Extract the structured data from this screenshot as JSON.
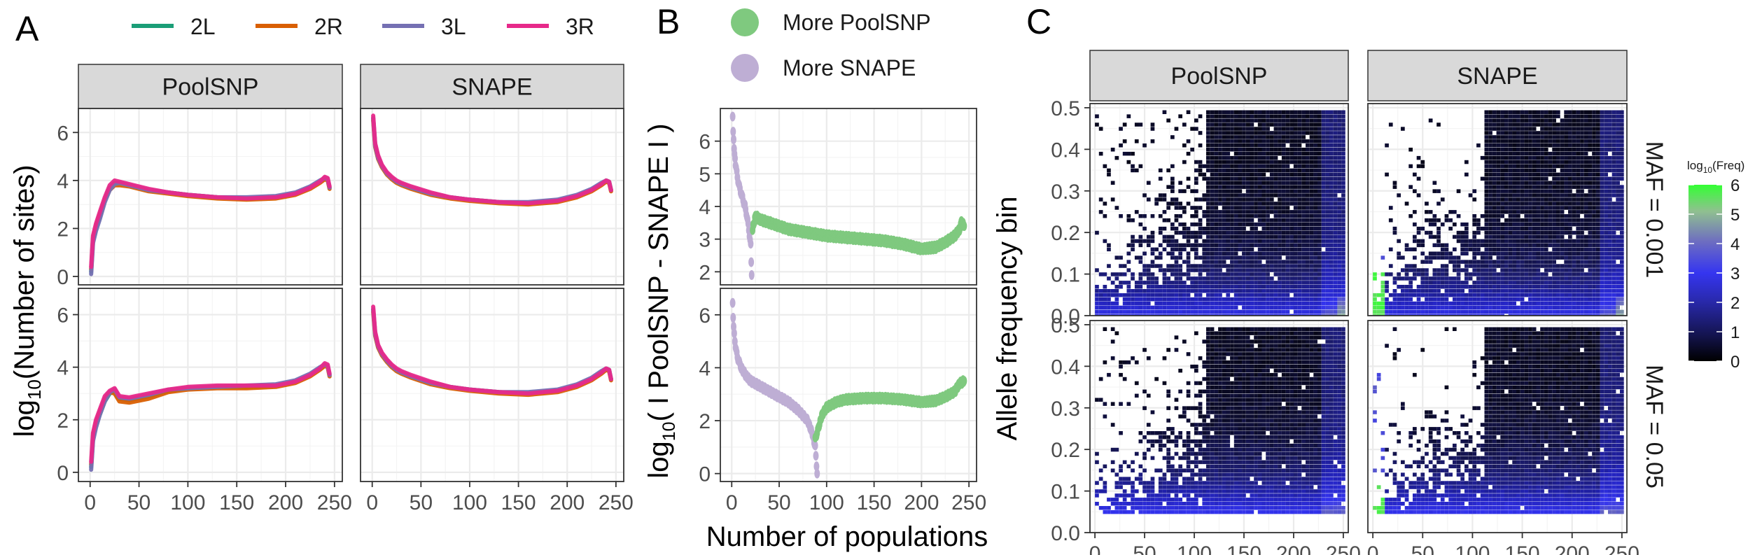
{
  "panels": {
    "a": "A",
    "b": "B",
    "c": "C"
  },
  "legend_a": [
    {
      "name": "2L",
      "color": "#1b9e77"
    },
    {
      "name": "2R",
      "color": "#d95f02"
    },
    {
      "name": "3L",
      "color": "#7570b3"
    },
    {
      "name": "3R",
      "color": "#e7298a"
    }
  ],
  "legend_b": [
    {
      "name": "More PoolSNP",
      "color": "#7fc97f"
    },
    {
      "name": "More SNAPE",
      "color": "#beaed4"
    }
  ],
  "strips": {
    "poolsnp": "PoolSNP",
    "snape": "SNAPE"
  },
  "row_strips": {
    "top": "MAF = 0.001",
    "bottom": "MAF = 0.05"
  },
  "axes": {
    "a_ylabel_main": "log",
    "a_ylabel_sub": "10",
    "a_ylabel_rest": "(Number of sites)",
    "b_ylabel_main": "log",
    "b_ylabel_sub": "10",
    "b_ylabel_rest": "( I PoolSNP - SNAPE I )",
    "c_ylabel": "Allele frequency bin",
    "shared_xlabel": "Number of populations"
  },
  "colorbar": {
    "title_main": "log",
    "title_sub": "10",
    "title_rest": "(Freq)",
    "ticks": [
      "6",
      "5",
      "4",
      "3",
      "2",
      "1",
      "0"
    ],
    "colors": [
      "#000000",
      "#1a1a66",
      "#2222bb",
      "#3333ee",
      "#6b6bbd",
      "#8fbf8f",
      "#33ff33"
    ]
  },
  "chart_data": [
    {
      "id": "A",
      "type": "line",
      "xlabel": "Number of populations",
      "ylabel": "log10(Number of sites)",
      "xlim": [
        0,
        250
      ],
      "ylim": [
        0,
        7
      ],
      "x_ticks": [
        0,
        50,
        100,
        150,
        200,
        250
      ],
      "y_ticks": [
        0,
        2,
        4,
        6
      ],
      "facets": [
        {
          "col": "PoolSNP",
          "row": 1,
          "x": [
            1,
            3,
            6,
            10,
            15,
            20,
            25,
            30,
            40,
            60,
            80,
            100,
            130,
            160,
            190,
            210,
            225,
            235,
            240,
            243,
            245
          ],
          "series": [
            {
              "name": "2L",
              "values": [
                0.2,
                1.5,
                2.0,
                2.5,
                3.2,
                3.7,
                3.9,
                3.9,
                3.8,
                3.6,
                3.5,
                3.4,
                3.3,
                3.25,
                3.3,
                3.45,
                3.7,
                3.95,
                4.1,
                4.05,
                3.7
              ]
            },
            {
              "name": "2R",
              "values": [
                0.3,
                1.6,
                2.1,
                2.6,
                3.2,
                3.6,
                3.8,
                3.8,
                3.75,
                3.55,
                3.45,
                3.35,
                3.25,
                3.2,
                3.25,
                3.4,
                3.65,
                3.9,
                4.05,
                4.0,
                3.65
              ]
            },
            {
              "name": "3L",
              "values": [
                0.1,
                1.4,
                1.9,
                2.4,
                3.1,
                3.6,
                3.85,
                3.9,
                3.8,
                3.6,
                3.5,
                3.4,
                3.3,
                3.3,
                3.35,
                3.5,
                3.75,
                4.0,
                4.1,
                4.05,
                3.7
              ]
            },
            {
              "name": "3R",
              "values": [
                0.4,
                1.7,
                2.2,
                2.7,
                3.3,
                3.8,
                4.0,
                3.95,
                3.85,
                3.65,
                3.5,
                3.4,
                3.3,
                3.25,
                3.3,
                3.45,
                3.7,
                3.95,
                4.15,
                4.1,
                3.75
              ]
            }
          ]
        },
        {
          "col": "SNAPE",
          "row": 1,
          "x": [
            1,
            3,
            6,
            10,
            15,
            20,
            25,
            30,
            40,
            60,
            80,
            100,
            130,
            160,
            190,
            210,
            225,
            235,
            240,
            243,
            245
          ],
          "series": [
            {
              "name": "2L",
              "values": [
                6.6,
                5.5,
                5.0,
                4.6,
                4.3,
                4.1,
                3.95,
                3.85,
                3.7,
                3.45,
                3.3,
                3.2,
                3.1,
                3.05,
                3.15,
                3.35,
                3.6,
                3.85,
                4.0,
                3.95,
                3.6
              ]
            },
            {
              "name": "2R",
              "values": [
                6.5,
                5.4,
                4.9,
                4.55,
                4.25,
                4.05,
                3.9,
                3.8,
                3.65,
                3.4,
                3.25,
                3.15,
                3.05,
                3.0,
                3.1,
                3.3,
                3.55,
                3.8,
                3.95,
                3.9,
                3.55
              ]
            },
            {
              "name": "3L",
              "values": [
                6.6,
                5.45,
                4.95,
                4.6,
                4.3,
                4.1,
                3.95,
                3.85,
                3.7,
                3.45,
                3.3,
                3.2,
                3.1,
                3.1,
                3.2,
                3.4,
                3.65,
                3.9,
                4.0,
                3.95,
                3.6
              ]
            },
            {
              "name": "3R",
              "values": [
                6.7,
                5.55,
                5.05,
                4.65,
                4.35,
                4.15,
                4.0,
                3.9,
                3.75,
                3.5,
                3.3,
                3.2,
                3.1,
                3.05,
                3.15,
                3.35,
                3.6,
                3.85,
                4.0,
                3.95,
                3.6
              ]
            }
          ]
        },
        {
          "col": "PoolSNP",
          "row": 2,
          "x": [
            1,
            3,
            6,
            10,
            15,
            20,
            25,
            30,
            40,
            60,
            80,
            100,
            130,
            160,
            190,
            210,
            225,
            235,
            240,
            243,
            245
          ],
          "series": [
            {
              "name": "2L",
              "values": [
                0.2,
                1.3,
                1.8,
                2.2,
                2.7,
                3.0,
                3.1,
                2.8,
                2.75,
                2.9,
                3.1,
                3.2,
                3.25,
                3.25,
                3.3,
                3.45,
                3.7,
                3.95,
                4.1,
                4.05,
                3.7
              ]
            },
            {
              "name": "2R",
              "values": [
                0.3,
                1.4,
                1.9,
                2.3,
                2.8,
                3.05,
                3.0,
                2.7,
                2.65,
                2.8,
                3.05,
                3.15,
                3.2,
                3.2,
                3.25,
                3.4,
                3.65,
                3.9,
                4.05,
                4.0,
                3.65
              ]
            },
            {
              "name": "3L",
              "values": [
                0.1,
                1.2,
                1.7,
                2.2,
                2.7,
                3.05,
                3.15,
                2.85,
                2.8,
                2.95,
                3.15,
                3.2,
                3.25,
                3.3,
                3.35,
                3.5,
                3.75,
                4.0,
                4.1,
                4.05,
                3.7
              ]
            },
            {
              "name": "3R",
              "values": [
                0.4,
                1.5,
                2.0,
                2.4,
                2.9,
                3.1,
                3.2,
                2.9,
                2.85,
                3.0,
                3.15,
                3.25,
                3.3,
                3.3,
                3.3,
                3.45,
                3.7,
                3.95,
                4.15,
                4.1,
                3.75
              ]
            }
          ]
        },
        {
          "col": "SNAPE",
          "row": 2,
          "x": [
            1,
            3,
            6,
            10,
            15,
            20,
            25,
            30,
            40,
            60,
            80,
            100,
            130,
            160,
            190,
            210,
            225,
            235,
            240,
            243,
            245
          ],
          "series": [
            {
              "name": "2L",
              "values": [
                6.2,
                5.3,
                4.8,
                4.5,
                4.25,
                4.05,
                3.9,
                3.8,
                3.65,
                3.4,
                3.25,
                3.15,
                3.05,
                3.0,
                3.1,
                3.3,
                3.55,
                3.8,
                3.95,
                3.9,
                3.55
              ]
            },
            {
              "name": "2R",
              "values": [
                6.1,
                5.2,
                4.75,
                4.45,
                4.2,
                4.0,
                3.85,
                3.75,
                3.6,
                3.35,
                3.2,
                3.1,
                3.0,
                2.95,
                3.05,
                3.25,
                3.5,
                3.75,
                3.9,
                3.85,
                3.5
              ]
            },
            {
              "name": "3L",
              "values": [
                6.2,
                5.25,
                4.8,
                4.5,
                4.25,
                4.05,
                3.9,
                3.8,
                3.65,
                3.4,
                3.25,
                3.15,
                3.05,
                3.05,
                3.15,
                3.35,
                3.6,
                3.85,
                3.95,
                3.9,
                3.55
              ]
            },
            {
              "name": "3R",
              "values": [
                6.3,
                5.35,
                4.85,
                4.55,
                4.3,
                4.1,
                3.95,
                3.85,
                3.7,
                3.45,
                3.25,
                3.15,
                3.05,
                3.0,
                3.1,
                3.3,
                3.55,
                3.8,
                3.95,
                3.9,
                3.55
              ]
            }
          ]
        }
      ]
    },
    {
      "id": "B",
      "type": "scatter",
      "xlabel": "Number of populations",
      "ylabel": "log10( I PoolSNP - SNAPE I )",
      "xlim": [
        0,
        250
      ],
      "x_ticks": [
        0,
        50,
        100,
        150,
        200,
        250
      ],
      "facets": [
        {
          "row": 1,
          "ylim": [
            1.6,
            7
          ],
          "y_ticks": [
            2,
            3,
            4,
            5,
            6
          ],
          "series": [
            {
              "name": "More SNAPE",
              "x": [
                1,
                2,
                3,
                4,
                6,
                8,
                10,
                12,
                14,
                16,
                18,
                20,
                21
              ],
              "values": [
                6.7,
                6.0,
                5.6,
                5.3,
                4.9,
                4.6,
                4.4,
                4.2,
                4.0,
                3.7,
                3.3,
                2.8,
                1.9
              ]
            },
            {
              "name": "More PoolSNP",
              "x": [
                22,
                25,
                30,
                40,
                50,
                60,
                80,
                100,
                120,
                140,
                160,
                180,
                200,
                215,
                225,
                235,
                240,
                242,
                245
              ],
              "values": [
                3.3,
                3.7,
                3.6,
                3.5,
                3.4,
                3.3,
                3.2,
                3.1,
                3.05,
                3.0,
                2.95,
                2.85,
                2.7,
                2.75,
                2.9,
                3.1,
                3.3,
                3.5,
                3.4
              ]
            }
          ]
        },
        {
          "row": 2,
          "ylim": [
            -0.3,
            7
          ],
          "y_ticks": [
            0,
            2,
            4,
            6
          ],
          "series": [
            {
              "name": "More SNAPE",
              "x": [
                1,
                2,
                4,
                6,
                10,
                15,
                20,
                30,
                40,
                50,
                60,
                70,
                80,
                85,
                88,
                90
              ],
              "values": [
                6.4,
                5.5,
                4.8,
                4.4,
                4.0,
                3.7,
                3.5,
                3.3,
                3.1,
                2.9,
                2.7,
                2.4,
                2.0,
                1.5,
                1.0,
                0.0
              ]
            },
            {
              "name": "More PoolSNP",
              "x": [
                88,
                92,
                95,
                100,
                110,
                120,
                140,
                160,
                180,
                200,
                215,
                225,
                235,
                240,
                245
              ],
              "values": [
                1.3,
                1.8,
                2.2,
                2.5,
                2.7,
                2.8,
                2.85,
                2.85,
                2.8,
                2.7,
                2.75,
                2.9,
                3.1,
                3.4,
                3.5
              ]
            }
          ]
        }
      ]
    },
    {
      "id": "C",
      "type": "heatmap",
      "xlabel": "Number of populations",
      "ylabel": "Allele frequency bin",
      "xlim": [
        -5,
        255
      ],
      "ylim": [
        0,
        0.51
      ],
      "x_ticks": [
        0,
        50,
        100,
        150,
        200,
        250
      ],
      "y_ticks": [
        0.0,
        0.1,
        0.2,
        0.3,
        0.4,
        0.5
      ],
      "fill_label": "log10(Freq)",
      "fill_range": [
        0,
        6
      ],
      "facets": [
        {
          "col": "PoolSNP",
          "row": "MAF = 0.001"
        },
        {
          "col": "SNAPE",
          "row": "MAF = 0.001"
        },
        {
          "col": "PoolSNP",
          "row": "MAF = 0.05"
        },
        {
          "col": "SNAPE",
          "row": "MAF = 0.05"
        }
      ]
    }
  ]
}
